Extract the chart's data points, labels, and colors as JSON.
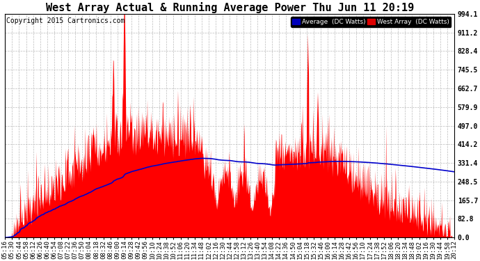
{
  "title": "West Array Actual & Running Average Power Thu Jun 11 20:19",
  "copyright": "Copyright 2015 Cartronics.com",
  "ylabel_right_values": [
    0.0,
    82.8,
    165.7,
    248.5,
    331.4,
    414.2,
    497.0,
    579.9,
    662.7,
    745.5,
    828.4,
    911.2,
    994.1
  ],
  "ymax": 994.1,
  "ymin": 0.0,
  "legend_labels": [
    "Average  (DC Watts)",
    "West Array  (DC Watts)"
  ],
  "fill_color": "#ff0000",
  "line_color": "#0000cc",
  "bg_color": "#ffffff",
  "grid_color": "#bbbbbb",
  "title_fontsize": 11,
  "copyright_fontsize": 7,
  "tick_fontsize": 6.5,
  "time_labels": [
    "05:16",
    "05:30",
    "05:44",
    "05:58",
    "06:12",
    "06:26",
    "06:40",
    "06:54",
    "07:08",
    "07:22",
    "07:36",
    "07:50",
    "08:04",
    "08:18",
    "08:32",
    "08:46",
    "09:00",
    "09:14",
    "09:28",
    "09:42",
    "09:56",
    "10:10",
    "10:24",
    "10:38",
    "10:52",
    "11:06",
    "11:20",
    "11:34",
    "11:48",
    "12:02",
    "12:16",
    "12:30",
    "12:44",
    "12:58",
    "13:12",
    "13:26",
    "13:40",
    "13:54",
    "14:08",
    "14:22",
    "14:36",
    "14:50",
    "15:04",
    "15:18",
    "15:32",
    "15:46",
    "16:00",
    "16:14",
    "16:28",
    "16:42",
    "16:56",
    "17:10",
    "17:24",
    "17:38",
    "17:52",
    "18:06",
    "18:20",
    "18:34",
    "18:48",
    "19:02",
    "19:16",
    "19:30",
    "19:44",
    "19:58",
    "20:12"
  ]
}
